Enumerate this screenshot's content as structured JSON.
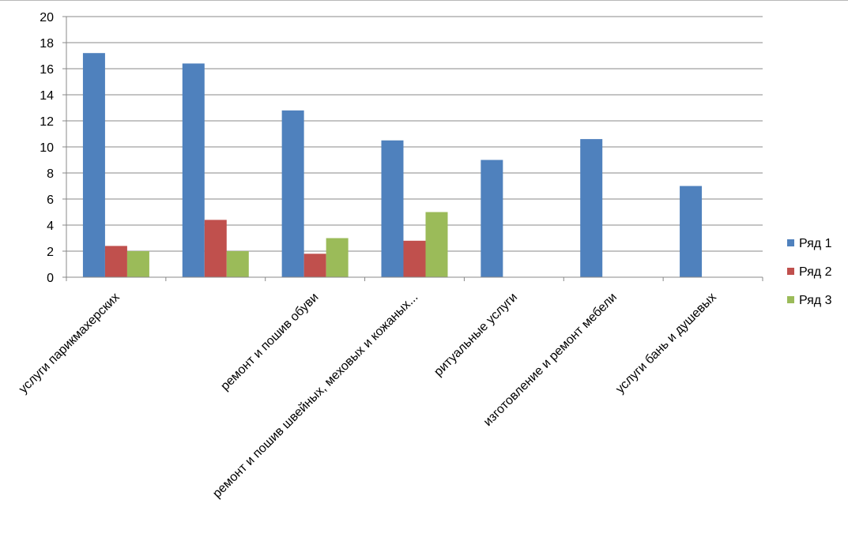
{
  "chart_data": {
    "type": "bar",
    "categories": [
      "услуги парикмахерских",
      "",
      "ремонт и пошив обуви",
      "ремонт и пошив швейных, меховых и кожаных...",
      "ритуальные услуги",
      "изготовление и ремонт мебели",
      "услуги бань и душевых"
    ],
    "series": [
      {
        "name": "Ряд 1",
        "color": "#4F81BD",
        "values": [
          17.2,
          16.4,
          12.8,
          10.5,
          9.0,
          10.6,
          7.0
        ]
      },
      {
        "name": "Ряд 2",
        "color": "#C0504D",
        "values": [
          2.4,
          4.4,
          1.8,
          2.8,
          0,
          0,
          0
        ]
      },
      {
        "name": "Ряд 3",
        "color": "#9BBB59",
        "values": [
          2.0,
          2.0,
          3.0,
          5.0,
          0,
          0,
          0
        ]
      }
    ],
    "ylim": [
      0,
      20
    ],
    "yticks": [
      0,
      2,
      4,
      6,
      8,
      10,
      12,
      14,
      16,
      18,
      20
    ],
    "grid": true,
    "legend_position": "right"
  }
}
